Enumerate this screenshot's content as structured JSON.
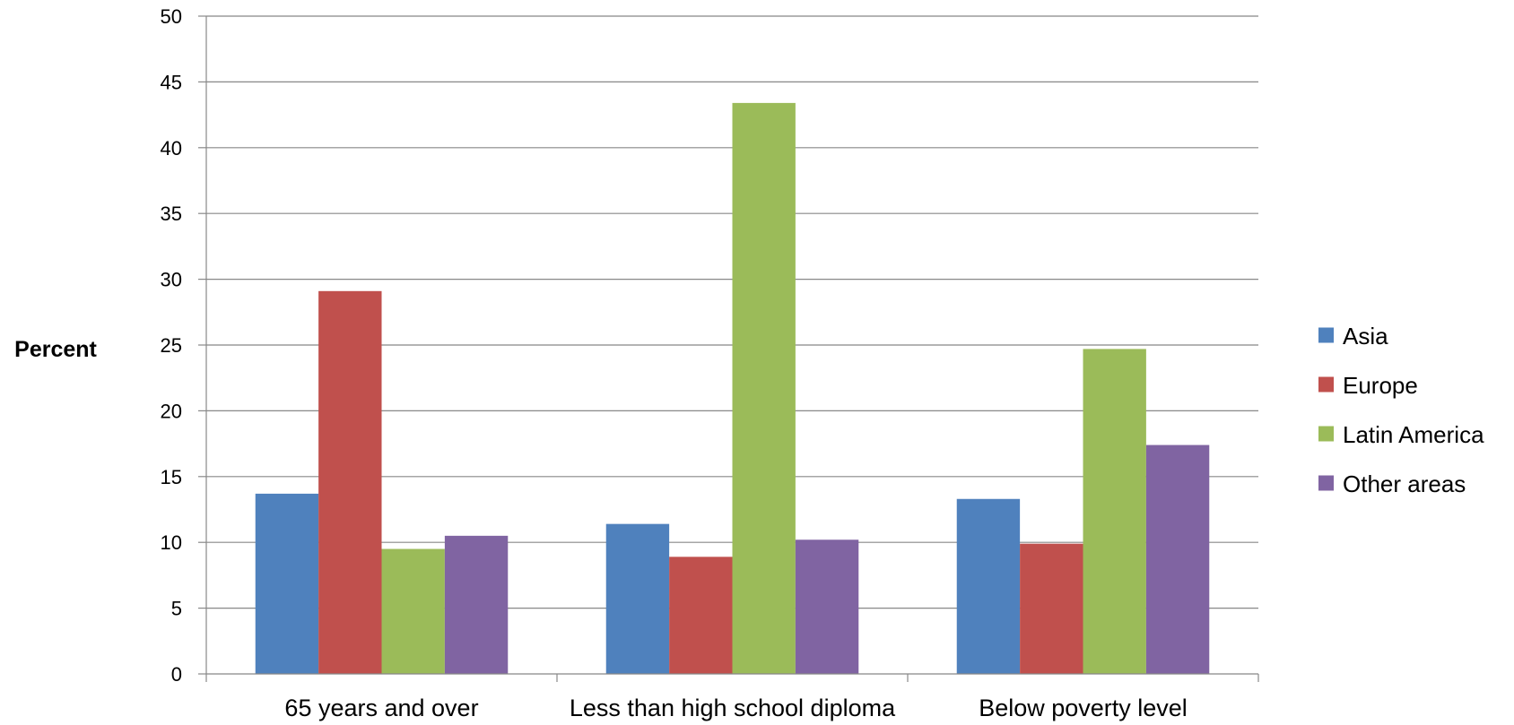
{
  "chart_data": {
    "type": "bar",
    "title": "",
    "xlabel": "",
    "ylabel": "Percent",
    "ylim": [
      0,
      50
    ],
    "yticks": [
      0,
      5,
      10,
      15,
      20,
      25,
      30,
      35,
      40,
      45,
      50
    ],
    "grid": true,
    "legend_position": "right",
    "categories": [
      "65 years and over",
      "Less than high school diploma",
      "Below poverty level"
    ],
    "series": [
      {
        "name": "Asia",
        "color": "#4F81BD",
        "values": [
          13.7,
          11.4,
          13.3
        ]
      },
      {
        "name": "Europe",
        "color": "#C0504D",
        "values": [
          29.1,
          8.9,
          9.9
        ]
      },
      {
        "name": "Latin America",
        "color": "#9BBB59",
        "values": [
          9.5,
          43.4,
          24.7
        ]
      },
      {
        "name": "Other areas",
        "color": "#8064A2",
        "values": [
          10.5,
          10.2,
          17.4
        ]
      }
    ]
  }
}
